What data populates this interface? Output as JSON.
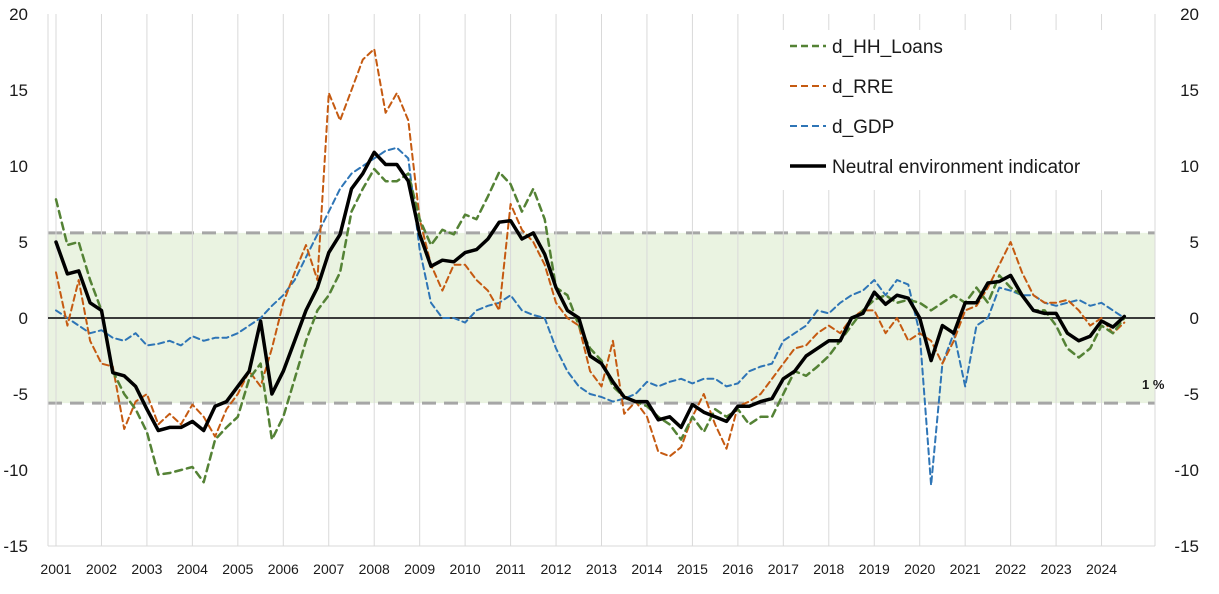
{
  "chart_data": {
    "type": "line",
    "title": "",
    "xlabel": "",
    "ylabel": "",
    "ylim": [
      -15,
      20
    ],
    "y_ticks": [
      20,
      15,
      10,
      5,
      0,
      -5,
      -10,
      -15
    ],
    "y_tick_labels": [
      "20",
      "15",
      "10",
      "5",
      "0",
      "-5",
      "-10",
      "-15"
    ],
    "x_range": [
      2001.0,
      2025.0
    ],
    "x_ticks": [
      "2001",
      "2002",
      "2003",
      "2004",
      "2005",
      "2006",
      "2007",
      "2008",
      "2009",
      "2010",
      "2011",
      "2012",
      "2013",
      "2014",
      "2015",
      "2016",
      "2017",
      "2018",
      "2019",
      "2020",
      "2021",
      "2022",
      "2023",
      "2024"
    ],
    "grid": "vertical",
    "secondary_axis": "right (same scale)",
    "legend_position": "top-right",
    "band": {
      "lower": -5.6,
      "upper": 5.6,
      "label": "1 %",
      "fill": "#eaf3e1",
      "border": "#a6a6a6"
    },
    "series": [
      {
        "name": "d_HH_Loans",
        "color": "#548235",
        "style": "dashed",
        "width": 2.5,
        "x": [
          2001.0,
          2001.25,
          2001.5,
          2001.75,
          2002.0,
          2002.25,
          2002.5,
          2002.75,
          2003.0,
          2003.25,
          2003.5,
          2003.75,
          2004.0,
          2004.25,
          2004.5,
          2004.75,
          2005.0,
          2005.25,
          2005.5,
          2005.75,
          2006.0,
          2006.25,
          2006.5,
          2006.75,
          2007.0,
          2007.25,
          2007.5,
          2007.75,
          2008.0,
          2008.25,
          2008.5,
          2008.75,
          2009.0,
          2009.25,
          2009.5,
          2009.75,
          2010.0,
          2010.25,
          2010.5,
          2010.75,
          2011.0,
          2011.25,
          2011.5,
          2011.75,
          2012.0,
          2012.25,
          2012.5,
          2012.75,
          2013.0,
          2013.25,
          2013.5,
          2013.75,
          2014.0,
          2014.25,
          2014.5,
          2014.75,
          2015.0,
          2015.25,
          2015.5,
          2015.75,
          2016.0,
          2016.25,
          2016.5,
          2016.75,
          2017.0,
          2017.25,
          2017.5,
          2017.75,
          2018.0,
          2018.25,
          2018.5,
          2018.75,
          2019.0,
          2019.25,
          2019.5,
          2019.75,
          2020.0,
          2020.25,
          2020.5,
          2020.75,
          2021.0,
          2021.25,
          2021.5,
          2021.75,
          2022.0,
          2022.25,
          2022.5,
          2022.75,
          2023.0,
          2023.25,
          2023.5,
          2023.75,
          2024.0,
          2024.25,
          2024.5
        ],
        "y": [
          7.8,
          4.8,
          5.0,
          2.5,
          0.5,
          -3.5,
          -5.0,
          -6.0,
          -7.5,
          -10.3,
          -10.2,
          -10.0,
          -9.8,
          -10.8,
          -8.0,
          -7.2,
          -6.5,
          -4.0,
          -3.0,
          -8.0,
          -6.5,
          -4.0,
          -1.5,
          0.5,
          1.5,
          3.0,
          7.0,
          8.5,
          9.8,
          9.0,
          9.0,
          9.5,
          6.5,
          4.8,
          5.8,
          5.5,
          6.8,
          6.5,
          8.0,
          9.6,
          8.8,
          7.0,
          8.5,
          6.5,
          2.0,
          1.5,
          -0.5,
          -2.0,
          -2.8,
          -4.5,
          -5.2,
          -5.5,
          -5.8,
          -6.5,
          -7.0,
          -8.0,
          -6.5,
          -7.5,
          -6.0,
          -6.5,
          -6.0,
          -7.0,
          -6.5,
          -6.5,
          -5.0,
          -3.5,
          -3.8,
          -3.2,
          -2.5,
          -1.5,
          -0.5,
          0.5,
          1.2,
          1.5,
          1.0,
          1.2,
          1.0,
          0.5,
          1.0,
          1.5,
          1.0,
          2.0,
          1.0,
          2.8,
          2.0,
          1.5,
          0.5,
          0.5,
          -0.5,
          -2.0,
          -2.6,
          -2.0,
          -0.5,
          -1.0,
          0.0
        ]
      },
      {
        "name": "d_RRE",
        "color": "#c55a11",
        "style": "dashed",
        "width": 2.0,
        "x": [
          2001.0,
          2001.25,
          2001.5,
          2001.75,
          2002.0,
          2002.25,
          2002.5,
          2002.75,
          2003.0,
          2003.25,
          2003.5,
          2003.75,
          2004.0,
          2004.25,
          2004.5,
          2004.75,
          2005.0,
          2005.25,
          2005.5,
          2005.75,
          2006.0,
          2006.25,
          2006.5,
          2006.75,
          2007.0,
          2007.25,
          2007.5,
          2007.75,
          2008.0,
          2008.25,
          2008.5,
          2008.75,
          2009.0,
          2009.25,
          2009.5,
          2009.75,
          2010.0,
          2010.25,
          2010.5,
          2010.75,
          2011.0,
          2011.25,
          2011.5,
          2011.75,
          2012.0,
          2012.25,
          2012.5,
          2012.75,
          2013.0,
          2013.25,
          2013.5,
          2013.75,
          2014.0,
          2014.25,
          2014.5,
          2014.75,
          2015.0,
          2015.25,
          2015.5,
          2015.75,
          2016.0,
          2016.25,
          2016.5,
          2016.75,
          2017.0,
          2017.25,
          2017.5,
          2017.75,
          2018.0,
          2018.25,
          2018.5,
          2018.75,
          2019.0,
          2019.25,
          2019.5,
          2019.75,
          2020.0,
          2020.25,
          2020.5,
          2020.75,
          2021.0,
          2021.25,
          2021.5,
          2021.75,
          2022.0,
          2022.25,
          2022.5,
          2022.75,
          2023.0,
          2023.25,
          2023.5,
          2023.75,
          2024.0,
          2024.25,
          2024.5
        ],
        "y": [
          3.0,
          -0.5,
          2.5,
          -1.5,
          -3.0,
          -3.2,
          -7.3,
          -5.5,
          -5.0,
          -7.0,
          -6.3,
          -7.0,
          -5.7,
          -6.5,
          -7.8,
          -6.0,
          -5.0,
          -3.5,
          -4.5,
          -2.0,
          1.0,
          3.0,
          4.8,
          2.5,
          14.8,
          13.0,
          15.0,
          17.0,
          17.7,
          13.5,
          14.8,
          13.0,
          6.5,
          3.5,
          1.8,
          3.5,
          3.5,
          2.5,
          1.8,
          0.5,
          7.5,
          5.8,
          5.0,
          3.5,
          1.0,
          0.0,
          -0.5,
          -3.5,
          -4.5,
          -1.5,
          -6.3,
          -5.5,
          -6.5,
          -8.8,
          -9.1,
          -8.5,
          -6.5,
          -5.0,
          -7.0,
          -8.6,
          -5.8,
          -5.5,
          -5.0,
          -4.0,
          -3.0,
          -2.0,
          -1.8,
          -1.0,
          -0.5,
          -1.0,
          0.0,
          0.5,
          0.5,
          -1.0,
          0.0,
          -1.5,
          -1.0,
          -1.5,
          -3.0,
          -1.5,
          0.5,
          0.8,
          2.0,
          3.5,
          5.0,
          3.0,
          1.5,
          1.0,
          1.0,
          1.2,
          0.5,
          -0.5,
          0.0,
          -1.0,
          -0.3
        ]
      },
      {
        "name": "d_GDP",
        "color": "#2e75b6",
        "style": "dashed",
        "width": 2.0,
        "x": [
          2001.0,
          2001.25,
          2001.5,
          2001.75,
          2002.0,
          2002.25,
          2002.5,
          2002.75,
          2003.0,
          2003.25,
          2003.5,
          2003.75,
          2004.0,
          2004.25,
          2004.5,
          2004.75,
          2005.0,
          2005.25,
          2005.5,
          2005.75,
          2006.0,
          2006.25,
          2006.5,
          2006.75,
          2007.0,
          2007.25,
          2007.5,
          2007.75,
          2008.0,
          2008.25,
          2008.5,
          2008.75,
          2009.0,
          2009.25,
          2009.5,
          2009.75,
          2010.0,
          2010.25,
          2010.5,
          2010.75,
          2011.0,
          2011.25,
          2011.5,
          2011.75,
          2012.0,
          2012.25,
          2012.5,
          2012.75,
          2013.0,
          2013.25,
          2013.5,
          2013.75,
          2014.0,
          2014.25,
          2014.5,
          2014.75,
          2015.0,
          2015.25,
          2015.5,
          2015.75,
          2016.0,
          2016.25,
          2016.5,
          2016.75,
          2017.0,
          2017.25,
          2017.5,
          2017.75,
          2018.0,
          2018.25,
          2018.5,
          2018.75,
          2019.0,
          2019.25,
          2019.5,
          2019.75,
          2020.0,
          2020.25,
          2020.5,
          2020.75,
          2021.0,
          2021.25,
          2021.5,
          2021.75,
          2022.0,
          2022.25,
          2022.5,
          2022.75,
          2023.0,
          2023.25,
          2023.5,
          2023.75,
          2024.0,
          2024.25,
          2024.5
        ],
        "y": [
          0.5,
          0.0,
          -0.5,
          -1.0,
          -0.8,
          -1.3,
          -1.5,
          -1.0,
          -1.8,
          -1.7,
          -1.5,
          -1.8,
          -1.2,
          -1.5,
          -1.3,
          -1.3,
          -1.0,
          -0.5,
          0.0,
          0.8,
          1.5,
          2.5,
          4.0,
          5.5,
          7.0,
          8.5,
          9.5,
          10.0,
          10.5,
          11.0,
          11.2,
          10.5,
          4.5,
          1.0,
          0.0,
          0.0,
          -0.3,
          0.5,
          0.8,
          1.0,
          1.5,
          0.5,
          0.2,
          0.0,
          -2.0,
          -3.5,
          -4.5,
          -5.0,
          -5.2,
          -5.5,
          -5.3,
          -5.0,
          -4.2,
          -4.5,
          -4.2,
          -4.0,
          -4.3,
          -4.0,
          -4.0,
          -4.5,
          -4.3,
          -3.5,
          -3.2,
          -3.0,
          -1.5,
          -1.0,
          -0.5,
          0.5,
          0.3,
          1.0,
          1.5,
          1.8,
          2.5,
          1.5,
          2.5,
          2.2,
          -1.0,
          -11.0,
          -3.0,
          -1.0,
          -4.5,
          -0.5,
          0.0,
          2.0,
          1.8,
          1.5,
          1.5,
          1.0,
          0.8,
          1.0,
          1.2,
          0.8,
          1.0,
          0.5,
          0.0
        ]
      },
      {
        "name": "Neutral environment indicator",
        "color": "#000000",
        "style": "solid",
        "width": 3.5,
        "x": [
          2001.0,
          2001.25,
          2001.5,
          2001.75,
          2002.0,
          2002.25,
          2002.5,
          2002.75,
          2003.0,
          2003.25,
          2003.5,
          2003.75,
          2004.0,
          2004.25,
          2004.5,
          2004.75,
          2005.0,
          2005.25,
          2005.5,
          2005.75,
          2006.0,
          2006.25,
          2006.5,
          2006.75,
          2007.0,
          2007.25,
          2007.5,
          2007.75,
          2008.0,
          2008.25,
          2008.5,
          2008.75,
          2009.0,
          2009.25,
          2009.5,
          2009.75,
          2010.0,
          2010.25,
          2010.5,
          2010.75,
          2011.0,
          2011.25,
          2011.5,
          2011.75,
          2012.0,
          2012.25,
          2012.5,
          2012.75,
          2013.0,
          2013.25,
          2013.5,
          2013.75,
          2014.0,
          2014.25,
          2014.5,
          2014.75,
          2015.0,
          2015.25,
          2015.5,
          2015.75,
          2016.0,
          2016.25,
          2016.5,
          2016.75,
          2017.0,
          2017.25,
          2017.5,
          2017.75,
          2018.0,
          2018.25,
          2018.5,
          2018.75,
          2019.0,
          2019.25,
          2019.5,
          2019.75,
          2020.0,
          2020.25,
          2020.5,
          2020.75,
          2021.0,
          2021.25,
          2021.5,
          2021.75,
          2022.0,
          2022.25,
          2022.5,
          2022.75,
          2023.0,
          2023.25,
          2023.5,
          2023.75,
          2024.0,
          2024.25,
          2024.5
        ],
        "y": [
          5.0,
          2.9,
          3.1,
          1.0,
          0.5,
          -3.6,
          -3.8,
          -4.5,
          -6.0,
          -7.4,
          -7.2,
          -7.2,
          -6.8,
          -7.4,
          -5.8,
          -5.5,
          -4.5,
          -3.5,
          -0.2,
          -5.0,
          -3.5,
          -1.5,
          0.5,
          2.0,
          4.3,
          5.5,
          8.5,
          9.5,
          10.9,
          10.1,
          10.1,
          9.0,
          5.5,
          3.4,
          3.8,
          3.7,
          4.3,
          4.5,
          5.2,
          6.3,
          6.4,
          5.2,
          5.6,
          4.2,
          2.0,
          0.5,
          0.0,
          -2.5,
          -3.0,
          -4.2,
          -5.2,
          -5.5,
          -5.5,
          -6.7,
          -6.5,
          -7.2,
          -5.7,
          -6.2,
          -6.5,
          -6.8,
          -5.8,
          -5.8,
          -5.5,
          -5.3,
          -4.0,
          -3.5,
          -2.5,
          -2.0,
          -1.5,
          -1.5,
          0.0,
          0.3,
          1.7,
          0.9,
          1.5,
          1.3,
          0.0,
          -2.8,
          -0.5,
          -1.0,
          1.0,
          1.0,
          2.3,
          2.4,
          2.8,
          1.5,
          0.5,
          0.3,
          0.3,
          -1.0,
          -1.5,
          -1.2,
          -0.2,
          -0.6,
          0.1
        ]
      }
    ]
  }
}
